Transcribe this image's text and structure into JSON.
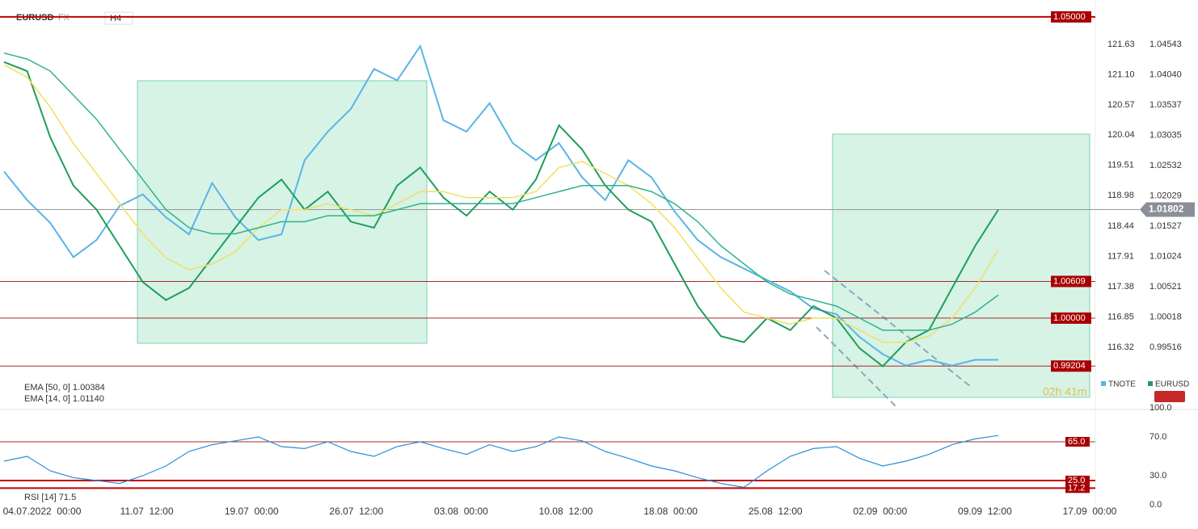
{
  "header": {
    "symbol": "EURUSD",
    "market": "FX",
    "timeframe": "H4"
  },
  "eurusd_ticks": [
    {
      "value": 1.04543,
      "label": "1.04543"
    },
    {
      "value": 1.0404,
      "label": "1.04040"
    },
    {
      "value": 1.03537,
      "label": "1.03537"
    },
    {
      "value": 1.03035,
      "label": "1.03035"
    },
    {
      "value": 1.02532,
      "label": "1.02532"
    },
    {
      "value": 1.02029,
      "label": "1.02029"
    },
    {
      "value": 1.01527,
      "label": "1.01527"
    },
    {
      "value": 1.01024,
      "label": "1.01024"
    },
    {
      "value": 1.00521,
      "label": "1.00521"
    },
    {
      "value": 1.00018,
      "label": "1.00018"
    },
    {
      "value": 0.99516,
      "label": "0.99516"
    }
  ],
  "tnote_ticks": [
    {
      "value": 121.63,
      "label": "121.63"
    },
    {
      "value": 121.1,
      "label": "121.10"
    },
    {
      "value": 120.57,
      "label": "120.57"
    },
    {
      "value": 120.04,
      "label": "120.04"
    },
    {
      "value": 119.51,
      "label": "119.51"
    },
    {
      "value": 118.98,
      "label": "118.98"
    },
    {
      "value": 118.44,
      "label": "118.44"
    },
    {
      "value": 117.91,
      "label": "117.91"
    },
    {
      "value": 117.38,
      "label": "117.38"
    },
    {
      "value": 116.85,
      "label": "116.85"
    },
    {
      "value": 116.32,
      "label": "116.32"
    }
  ],
  "levels": [
    {
      "value": 1.05,
      "label": "1.05000"
    },
    {
      "value": 1.00609,
      "label": "1.00609"
    },
    {
      "value": 1.0,
      "label": "1.00000"
    },
    {
      "value": 0.99204,
      "label": "0.99204"
    }
  ],
  "current_price": {
    "value": 1.01802,
    "label": "1.01802"
  },
  "indicators": [
    "EMA [50, 0] 1.00384",
    "EMA [14, 0] 1.01140"
  ],
  "legend": [
    "TNOTE",
    "EURUSD"
  ],
  "timer": "02h 41m",
  "x_labels": [
    "04.07.2022  00:00",
    "11.07  12:00",
    "19.07  00:00",
    "26.07  12:00",
    "03.08  00:00",
    "10.08  12:00",
    "18.08  00:00",
    "25.08  12:00",
    "02.09  00:00",
    "09.09  12:00",
    "17.09  00:00"
  ],
  "series": [
    {
      "name": "TNOTE",
      "color": "#5ab4e6",
      "axis": "tnote",
      "values": [
        119.4,
        118.9,
        118.5,
        117.9,
        118.2,
        118.8,
        119.0,
        118.6,
        118.3,
        119.2,
        118.6,
        118.2,
        118.3,
        119.6,
        120.1,
        120.5,
        121.2,
        121.0,
        121.6,
        120.3,
        120.1,
        120.6,
        119.9,
        119.6,
        119.9,
        119.3,
        118.9,
        119.6,
        119.3,
        118.7,
        118.2,
        117.9,
        117.7,
        117.5,
        117.3,
        117.0,
        116.9,
        116.5,
        116.2,
        116.0,
        116.1,
        116.0,
        116.1,
        116.1
      ]
    },
    {
      "name": "EURUSD",
      "color": "#1e9e5a",
      "axis": "eurusd",
      "values": [
        1.0425,
        1.041,
        1.03,
        1.022,
        1.018,
        1.012,
        1.006,
        1.003,
        1.005,
        1.01,
        1.015,
        1.02,
        1.023,
        1.018,
        1.021,
        1.016,
        1.015,
        1.022,
        1.025,
        1.02,
        1.017,
        1.021,
        1.018,
        1.023,
        1.032,
        1.028,
        1.022,
        1.018,
        1.016,
        1.009,
        1.002,
        0.997,
        0.996,
        1.0,
        0.998,
        1.002,
        1.0,
        0.995,
        0.992,
        0.996,
        0.998,
        1.005,
        1.012,
        1.018
      ]
    },
    {
      "name": "EMA [14, 0]",
      "color": "#f0e060",
      "axis": "eurusd",
      "values": [
        1.042,
        1.04,
        1.035,
        1.029,
        1.024,
        1.019,
        1.014,
        1.01,
        1.008,
        1.009,
        1.011,
        1.015,
        1.018,
        1.018,
        1.019,
        1.018,
        1.017,
        1.019,
        1.021,
        1.021,
        1.02,
        1.02,
        1.02,
        1.021,
        1.025,
        1.026,
        1.024,
        1.022,
        1.019,
        1.015,
        1.01,
        1.005,
        1.001,
        1.0,
        0.999,
        1.0,
        1.0,
        0.998,
        0.996,
        0.996,
        0.997,
        1.0,
        1.005,
        1.0114
      ]
    },
    {
      "name": "EMA [50, 0]",
      "color": "#2fb38a",
      "axis": "eurusd",
      "values": [
        1.044,
        1.043,
        1.041,
        1.037,
        1.033,
        1.028,
        1.023,
        1.018,
        1.015,
        1.014,
        1.014,
        1.015,
        1.016,
        1.016,
        1.017,
        1.017,
        1.017,
        1.018,
        1.019,
        1.019,
        1.019,
        1.019,
        1.019,
        1.02,
        1.021,
        1.022,
        1.022,
        1.022,
        1.021,
        1.019,
        1.016,
        1.012,
        1.009,
        1.006,
        1.004,
        1.003,
        1.002,
        1.0,
        0.998,
        0.998,
        0.998,
        0.999,
        1.001,
        1.00384
      ]
    }
  ],
  "rsi": {
    "label": "RSI [14] 71.5",
    "ticks": [
      {
        "value": 100,
        "label": "100.0"
      },
      {
        "value": 70,
        "label": "70.0"
      },
      {
        "value": 30,
        "label": "30.0"
      },
      {
        "value": 0,
        "label": "0.0"
      }
    ],
    "levels": [
      {
        "value": 65,
        "label": "65.0"
      },
      {
        "value": 25,
        "label": "25.0"
      },
      {
        "value": 17.2,
        "label": "17.2"
      }
    ],
    "color": "#2a8fd8",
    "values": [
      45,
      50,
      35,
      28,
      25,
      22,
      30,
      40,
      55,
      62,
      66,
      70,
      60,
      58,
      65,
      55,
      50,
      60,
      65,
      58,
      52,
      62,
      55,
      60,
      70,
      66,
      55,
      48,
      40,
      35,
      28,
      22,
      18,
      35,
      50,
      58,
      60,
      48,
      40,
      45,
      52,
      62,
      68,
      71.5
    ]
  }
}
